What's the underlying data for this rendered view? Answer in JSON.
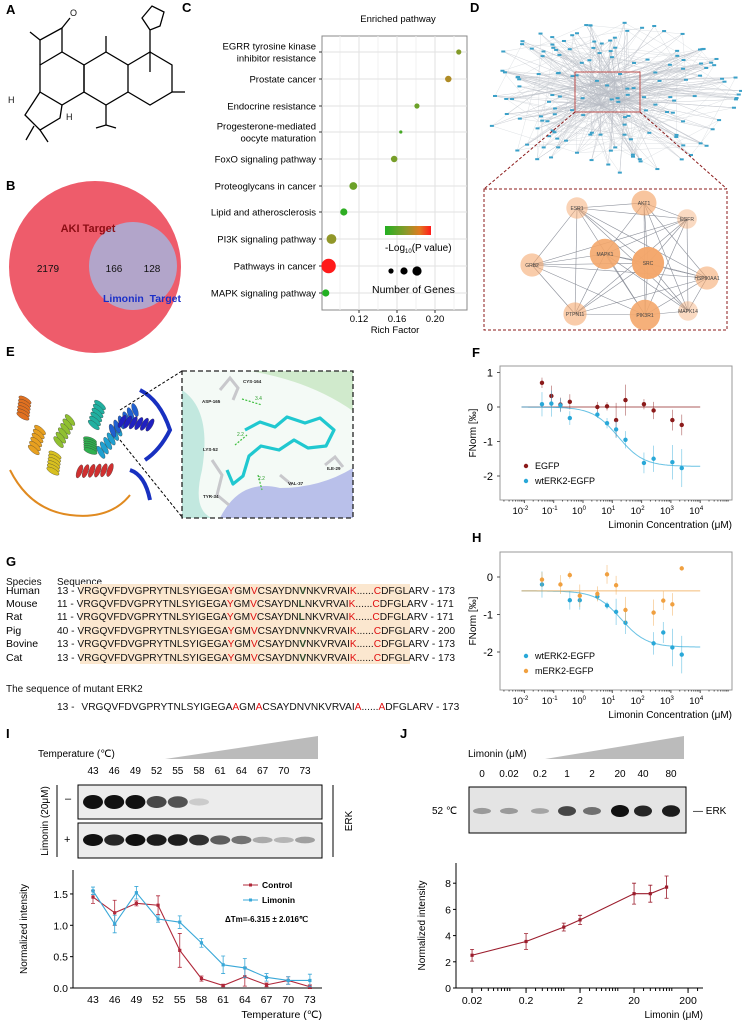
{
  "panels": {
    "A": "A",
    "B": "B",
    "C": "C",
    "D": "D",
    "E": "E",
    "F": "F",
    "G": "G",
    "H": "H",
    "I": "I",
    "J": "J"
  },
  "molecule_atoms": {
    "o": "O",
    "h": "H",
    "h2": "H"
  },
  "venn": {
    "left_label": "AKI Target",
    "right_label": "Limonin  Target",
    "left_only": "2179",
    "overlap": "166",
    "right_only": "128",
    "left_color": "#ee5c6b",
    "right_color": "#9dbde9"
  },
  "network": {
    "hub_genes": [
      "ESR1",
      "AKT1",
      "EGFR",
      "GRB2",
      "MAPK1",
      "SRC",
      "HSP90AA1",
      "PTPN11",
      "PIK3R1",
      "MAPK14"
    ],
    "hub_degree": [
      3,
      5,
      2,
      4,
      8,
      9,
      4,
      4,
      8,
      2
    ],
    "node_color": "#f4a66a"
  },
  "docking": {
    "residues": [
      "CYS-164",
      "ASP-165",
      "LYS-52",
      "TYR-34",
      "VAL-37",
      "ILE-29"
    ],
    "distances": [
      "3.4",
      "2.2",
      "2.2"
    ]
  },
  "alignment": {
    "header_species": "Species",
    "header_sequence": "Sequence",
    "rows": [
      {
        "species": "Human",
        "start": "13 -",
        "var": "V",
        "end": "- 173"
      },
      {
        "species": "Mouse",
        "start": "11 -",
        "var": "L",
        "end": "- 171"
      },
      {
        "species": "Rat",
        "start": "11 -",
        "var": "L",
        "end": "- 171"
      },
      {
        "species": "Pig",
        "start": "40 -",
        "var": "V",
        "end": "- 200"
      },
      {
        "species": "Bovine",
        "start": "13 -",
        "var": "V",
        "end": "- 173"
      },
      {
        "species": "Cat",
        "start": "13 -",
        "var": "V",
        "end": "- 173"
      }
    ],
    "seg1": "VRGQVFDVGPRYTNLSYIGEGA",
    "r1": "Y",
    "seg2": "GM",
    "r2": "V",
    "seg3": "CSAYDN",
    "seg4": "NKVRVAI",
    "r3": "K",
    "dots": "......",
    "r4": "C",
    "seg5": "DFGLARV",
    "mutant_title": "The sequence of mutant ERK2",
    "mutant": {
      "start": "13 -",
      "seg1": "VRGQVFDVGPRYTNLSYIGEGA",
      "m1": "A",
      "seg2": "GM",
      "m2": "A",
      "seg3": "CSAYDNVNKVRVAI",
      "m3": "A",
      "dots": "......",
      "m4": "A",
      "seg5": "DFGLARV",
      "end": "- 173"
    }
  },
  "blot_I": {
    "header": "Temperature (℃)",
    "lanes": [
      "43",
      "46",
      "49",
      "52",
      "55",
      "58",
      "61",
      "64",
      "67",
      "70",
      "73"
    ],
    "treatment_label": "Limonin (20μM)",
    "minus": "–",
    "plus": "+",
    "protein": "ERK",
    "minus_intensity": [
      1,
      1,
      1,
      0.75,
      0.7,
      0.15,
      0,
      0,
      0,
      0,
      0
    ],
    "plus_intensity": [
      1,
      0.9,
      1,
      0.95,
      0.95,
      0.85,
      0.65,
      0.55,
      0.3,
      0.25,
      0.35
    ]
  },
  "blot_J": {
    "header": "Limonin (μM)",
    "lanes": [
      "0",
      "0.02",
      "0.2",
      "1",
      "2",
      "20",
      "40",
      "80"
    ],
    "temp": "52 ℃",
    "protein": "— ERK",
    "intensity": [
      0.35,
      0.35,
      0.3,
      0.75,
      0.55,
      1,
      0.9,
      0.95
    ]
  },
  "chart_data": [
    {
      "id": "C",
      "type": "scatter",
      "title": "Enriched pathway",
      "xlabel": "Rich Factor",
      "xlim": [
        0.081,
        0.237
      ],
      "xticks": [
        0.12,
        0.16,
        0.2
      ],
      "xtick_labels": [
        "0.12",
        "0.16",
        "0.20"
      ],
      "categories": [
        "EGRR tyrosine kinase|inhibitor resistance",
        "Prostate cancer",
        "Endocrine resistance",
        "Progesterone-mediated|oocyte maturation",
        "FoxO signaling pathway",
        "Proteoglycans in cancer",
        "Lipid and atherosclerosis",
        "PI3K signaling pathway",
        "Pathways in cancer",
        "MAPK signaling pathway"
      ],
      "rich_factor": [
        0.225,
        0.214,
        0.181,
        0.164,
        0.157,
        0.114,
        0.104,
        0.091,
        0.088,
        0.085
      ],
      "neg_log10_p": [
        24.5,
        26,
        23.5,
        22,
        24,
        23.5,
        21,
        25,
        30,
        20.5
      ],
      "gene_count": [
        8,
        10,
        8,
        5,
        10,
        12,
        11,
        15,
        22,
        11
      ],
      "color_label": "-Log",
      "color_label_sub": "10",
      "color_label_tail": "(P value)",
      "size_label": "Number of Genes",
      "grid": true
    },
    {
      "id": "F",
      "type": "scatter",
      "ylabel": "FNorm [‰]",
      "xlabel": "Limonin Concentration (μM)",
      "xscale": "log",
      "xlim_log10": [
        -2.9,
        4.8
      ],
      "ylim": [
        -2.7,
        1.17
      ],
      "xtick_exp": [
        "-2",
        "-1",
        "0",
        "1",
        "2",
        "3",
        "4"
      ],
      "yticks": [
        1,
        0,
        -1,
        -2
      ],
      "ytick_labels": [
        "1",
        "0",
        "-1",
        "-2"
      ],
      "x_log10": [
        -1.4,
        -1.08,
        -0.77,
        -0.45,
        0.49,
        0.82,
        1.13,
        1.45,
        2.08,
        2.41,
        3.05,
        3.37
      ],
      "series": [
        {
          "name": "EGFP",
          "color": "#8b1a1a",
          "values": [
            0.7,
            0.32,
            0.07,
            0.15,
            0.0,
            0.02,
            -0.38,
            0.2,
            0.08,
            -0.1,
            -0.38,
            -0.52
          ],
          "err": [
            0.15,
            0.3,
            0.2,
            0.22,
            0.15,
            0.12,
            0.5,
            0.45,
            0.15,
            0.25,
            0.3,
            0.3
          ],
          "fit": {
            "top": 0,
            "bottom": 0,
            "log_ec50": 1
          }
        },
        {
          "name": "wtERK2-EGFP",
          "color": "#29a8d8",
          "values": [
            0.08,
            0.1,
            0.05,
            -0.32,
            -0.22,
            -0.47,
            -0.65,
            -0.95,
            -1.62,
            -1.5,
            -1.6,
            -1.77
          ],
          "err": [
            0.35,
            0.38,
            0.2,
            0.2,
            0.1,
            0.15,
            0.25,
            0.25,
            0.3,
            0.38,
            0.5,
            0.55
          ],
          "fit": {
            "top": 0,
            "bottom": -1.72,
            "log_ec50": 1.2
          }
        }
      ]
    },
    {
      "id": "H",
      "type": "scatter",
      "ylabel": "FNorm [‰]",
      "xlabel": "Limonin Concentration (μM)",
      "xscale": "log",
      "xlim_log10": [
        -2.9,
        4.8
      ],
      "ylim": [
        -3.0,
        0.67
      ],
      "xtick_exp": [
        "-2",
        "-1",
        "0",
        "1",
        "2",
        "3",
        "4"
      ],
      "yticks": [
        0,
        -1,
        -2
      ],
      "ytick_labels": [
        "0",
        "-1",
        "-2"
      ],
      "x_log10": [
        -1.4,
        -0.77,
        -0.45,
        -0.11,
        0.49,
        0.82,
        1.13,
        1.45,
        2.41,
        2.74,
        3.05,
        3.37
      ],
      "series": [
        {
          "name": "wtERK2-EGFP",
          "color": "#29a8d8",
          "values": [
            -0.2,
            null,
            -0.62,
            -0.62,
            -0.52,
            -0.76,
            -0.93,
            -1.22,
            -1.77,
            -1.48,
            -1.88,
            -2.07
          ],
          "err": [
            0.35,
            0,
            0.25,
            0.25,
            0.1,
            0.1,
            0.35,
            0.3,
            0.3,
            0.28,
            0.5,
            0.5
          ],
          "fit": {
            "top": -0.37,
            "bottom": -1.87,
            "log_ec50": 1.3
          }
        },
        {
          "name": "mERK2-EGFP",
          "color": "#f0a040",
          "values": [
            -0.07,
            -0.2,
            0.05,
            -0.5,
            -0.45,
            0.07,
            -0.22,
            -0.88,
            -0.95,
            -0.63,
            -0.73,
            0.23
          ],
          "err": [
            0.2,
            0.25,
            0.1,
            0.3,
            0.2,
            0.25,
            0.25,
            0.35,
            0.35,
            0.25,
            0.3,
            0.05
          ],
          "fit": {
            "top": -0.37,
            "bottom": -0.37,
            "log_ec50": 1
          }
        }
      ]
    },
    {
      "id": "I",
      "type": "line",
      "ylabel": "Normalized  intensity",
      "xlabel": "Temperature (℃)",
      "ylim": [
        0,
        1.88
      ],
      "x": [
        43,
        46,
        49,
        52,
        55,
        58,
        61,
        64,
        67,
        70,
        73
      ],
      "xtick_labels": [
        "43",
        "46",
        "49",
        "52",
        "55",
        "58",
        "61",
        "64",
        "67",
        "70",
        "73"
      ],
      "yticks": [
        0,
        0.5,
        1.0,
        1.5
      ],
      "ytick_labels": [
        "0.0",
        "0.5",
        "1.0",
        "1.5"
      ],
      "annotation": "ΔTm=-6.315 ± 2.016℃",
      "series": [
        {
          "name": "Control",
          "color": "#b0283a",
          "values": [
            1.45,
            1.2,
            1.35,
            1.32,
            0.6,
            0.15,
            0.04,
            0.18,
            0.05,
            0.12,
            0.02
          ],
          "err": [
            0.1,
            0.2,
            0.04,
            0.15,
            0.27,
            0.04,
            0.02,
            0.15,
            0.03,
            0.06,
            0.03
          ]
        },
        {
          "name": "Limonin",
          "color": "#3aa8d8",
          "values": [
            1.55,
            1.02,
            1.52,
            1.1,
            1.05,
            0.72,
            0.37,
            0.32,
            0.17,
            0.12,
            0.12
          ],
          "err": [
            0.06,
            0.14,
            0.1,
            0.05,
            0.1,
            0.07,
            0.14,
            0.15,
            0.06,
            0.06,
            0.1
          ]
        }
      ]
    },
    {
      "id": "J",
      "type": "line",
      "ylabel": "Normalized  intensity",
      "xlabel": "Limonin (μM)",
      "xscale": "log",
      "ylim": [
        0,
        9.5
      ],
      "xticks": [
        0.02,
        0.2,
        2,
        20,
        200
      ],
      "xtick_labels": [
        "0.02",
        "0.2",
        "2",
        "20",
        "200"
      ],
      "yticks": [
        0,
        2,
        4,
        6,
        8
      ],
      "ytick_labels": [
        "0",
        "2",
        "4",
        "6",
        "8"
      ],
      "x": [
        0.02,
        0.2,
        1,
        2,
        20,
        40,
        80
      ],
      "series": [
        {
          "name": "ERK",
          "color": "#9b1c2c",
          "values": [
            2.5,
            3.55,
            4.65,
            5.2,
            7.2,
            7.2,
            7.7
          ],
          "err": [
            0.45,
            0.6,
            0.3,
            0.35,
            0.8,
            0.65,
            0.85
          ]
        }
      ]
    }
  ]
}
